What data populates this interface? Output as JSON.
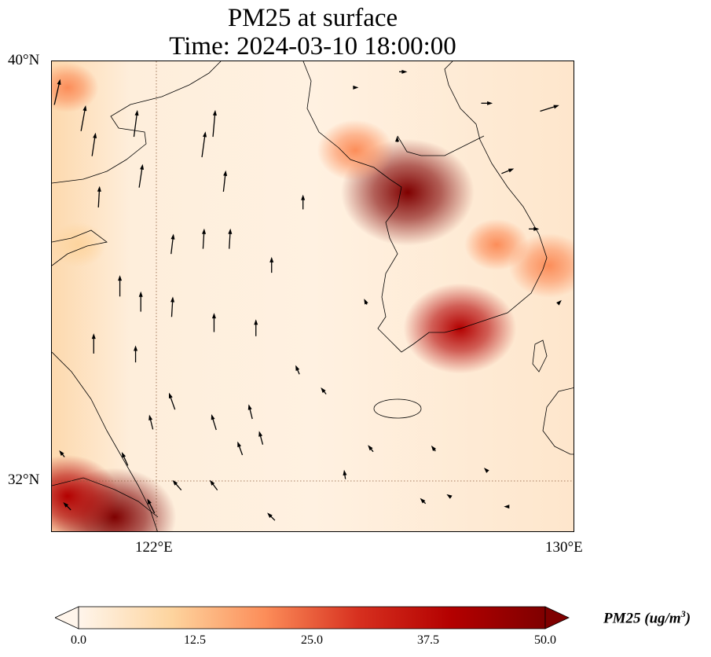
{
  "title": {
    "line1": "PM25 at surface",
    "line2": "Time: 2024-03-10 18:00:00"
  },
  "axes": {
    "lat_labels": [
      "40°N",
      "32°N"
    ],
    "lon_labels": [
      "122°E",
      "130°E"
    ],
    "extent": {
      "lon": [
        120,
        130
      ],
      "lat": [
        31,
        40
      ]
    }
  },
  "colorbar": {
    "ticks": [
      "0.0",
      "12.5",
      "25.0",
      "37.5",
      "50.0"
    ],
    "label_main": "PM25 (ug/m",
    "label_sup": "3",
    "label_close": ")",
    "range": [
      0,
      50
    ],
    "colors": [
      "#fff5eb",
      "#fdd49e",
      "#fc8d59",
      "#d7301f",
      "#b30000",
      "#7f0000"
    ]
  },
  "chart_data": {
    "type": "heatmap",
    "variable": "PM25",
    "units": "ug/m3",
    "hotspots": [
      {
        "lon": 126.8,
        "lat": 37.5,
        "value": 50
      },
      {
        "lon": 127.8,
        "lat": 34.9,
        "value": 40
      },
      {
        "lon": 129.5,
        "lat": 36.1,
        "value": 24
      },
      {
        "lon": 121.2,
        "lat": 31.3,
        "value": 45
      },
      {
        "lon": 120.3,
        "lat": 31.7,
        "value": 35
      },
      {
        "lon": 125.8,
        "lat": 38.3,
        "value": 22
      },
      {
        "lon": 120.3,
        "lat": 39.5,
        "value": 15
      },
      {
        "lon": 120.5,
        "lat": 36.5,
        "value": 12
      },
      {
        "lon": 128.5,
        "lat": 36.5,
        "value": 16
      }
    ],
    "wind_vectors": [
      {
        "lon": 120.1,
        "lat": 39.4,
        "u": 0.5,
        "v": 2.2
      },
      {
        "lon": 120.6,
        "lat": 38.9,
        "u": 0.4,
        "v": 2.2
      },
      {
        "lon": 120.8,
        "lat": 38.4,
        "u": 0.3,
        "v": 2
      },
      {
        "lon": 121.6,
        "lat": 38.8,
        "u": 0.3,
        "v": 2.3
      },
      {
        "lon": 121.7,
        "lat": 37.8,
        "u": 0.3,
        "v": 2
      },
      {
        "lon": 120.9,
        "lat": 37.4,
        "u": 0.1,
        "v": 1.8
      },
      {
        "lon": 122.9,
        "lat": 38.4,
        "u": 0.3,
        "v": 2.2
      },
      {
        "lon": 123.1,
        "lat": 38.8,
        "u": 0.2,
        "v": 2.3
      },
      {
        "lon": 123.3,
        "lat": 37.7,
        "u": 0.2,
        "v": 1.8
      },
      {
        "lon": 122.3,
        "lat": 36.5,
        "u": 0.2,
        "v": 1.7
      },
      {
        "lon": 122.9,
        "lat": 36.6,
        "u": 0.1,
        "v": 1.7
      },
      {
        "lon": 123.4,
        "lat": 36.6,
        "u": 0.1,
        "v": 1.7
      },
      {
        "lon": 124.2,
        "lat": 36.1,
        "u": 0,
        "v": 1.3
      },
      {
        "lon": 124.8,
        "lat": 37.3,
        "u": 0,
        "v": 1.2
      },
      {
        "lon": 121.3,
        "lat": 35.7,
        "u": 0,
        "v": 1.8
      },
      {
        "lon": 121.7,
        "lat": 35.4,
        "u": 0,
        "v": 1.7
      },
      {
        "lon": 122.3,
        "lat": 35.3,
        "u": 0.1,
        "v": 1.7
      },
      {
        "lon": 123.1,
        "lat": 35,
        "u": 0,
        "v": 1.6
      },
      {
        "lon": 123.9,
        "lat": 34.9,
        "u": 0,
        "v": 1.4
      },
      {
        "lon": 120.8,
        "lat": 34.6,
        "u": 0,
        "v": 1.7
      },
      {
        "lon": 121.6,
        "lat": 34.4,
        "u": 0,
        "v": 1.4
      },
      {
        "lon": 122.3,
        "lat": 33.5,
        "u": -0.5,
        "v": 1.4
      },
      {
        "lon": 121.9,
        "lat": 33.1,
        "u": -0.3,
        "v": 1.2
      },
      {
        "lon": 123.1,
        "lat": 33.1,
        "u": -0.4,
        "v": 1.3
      },
      {
        "lon": 123.8,
        "lat": 33.3,
        "u": -0.3,
        "v": 1.2
      },
      {
        "lon": 124,
        "lat": 32.8,
        "u": -0.3,
        "v": 1.1
      },
      {
        "lon": 123.6,
        "lat": 32.6,
        "u": -0.4,
        "v": 1.1
      },
      {
        "lon": 121.4,
        "lat": 32.4,
        "u": -0.5,
        "v": 1.1
      },
      {
        "lon": 121.9,
        "lat": 31.5,
        "u": -0.6,
        "v": 1.2
      },
      {
        "lon": 122.4,
        "lat": 31.9,
        "u": -0.7,
        "v": 0.8
      },
      {
        "lon": 123.1,
        "lat": 31.9,
        "u": -0.6,
        "v": 0.8
      },
      {
        "lon": 124.2,
        "lat": 31.3,
        "u": -0.6,
        "v": 0.6
      },
      {
        "lon": 120.3,
        "lat": 31.5,
        "u": -0.6,
        "v": 0.6
      },
      {
        "lon": 120.2,
        "lat": 32.5,
        "u": -0.4,
        "v": 0.5
      },
      {
        "lon": 125.6,
        "lat": 32.1,
        "u": -0.1,
        "v": 0.7
      },
      {
        "lon": 126.1,
        "lat": 32.6,
        "u": -0.4,
        "v": 0.5
      },
      {
        "lon": 125.2,
        "lat": 33.7,
        "u": -0.4,
        "v": 0.5
      },
      {
        "lon": 124.7,
        "lat": 34.1,
        "u": -0.3,
        "v": 0.7
      },
      {
        "lon": 126,
        "lat": 35.4,
        "u": -0.2,
        "v": 0.4
      },
      {
        "lon": 127.1,
        "lat": 31.6,
        "u": -0.4,
        "v": 0.4
      },
      {
        "lon": 127.3,
        "lat": 32.6,
        "u": -0.3,
        "v": 0.4
      },
      {
        "lon": 128.3,
        "lat": 32.2,
        "u": -0.2,
        "v": 0.2
      },
      {
        "lon": 128.7,
        "lat": 31.5,
        "u": -0.3,
        "v": 0
      },
      {
        "lon": 127.6,
        "lat": 31.7,
        "u": -0.3,
        "v": 0.2
      },
      {
        "lon": 126.6,
        "lat": 38.5,
        "u": 0,
        "v": 0.4
      },
      {
        "lon": 128.3,
        "lat": 39.2,
        "u": 0.9,
        "v": 0
      },
      {
        "lon": 129.5,
        "lat": 39.1,
        "u": 1.6,
        "v": 0.5
      },
      {
        "lon": 128.7,
        "lat": 37.9,
        "u": 1,
        "v": 0.4
      },
      {
        "lon": 129.2,
        "lat": 36.8,
        "u": 0.8,
        "v": 0
      },
      {
        "lon": 129.7,
        "lat": 35.4,
        "u": 0.2,
        "v": 0.2
      },
      {
        "lon": 126.7,
        "lat": 39.8,
        "u": 0.6,
        "v": 0
      },
      {
        "lon": 125.8,
        "lat": 39.5,
        "u": 0.3,
        "v": 0
      }
    ]
  }
}
